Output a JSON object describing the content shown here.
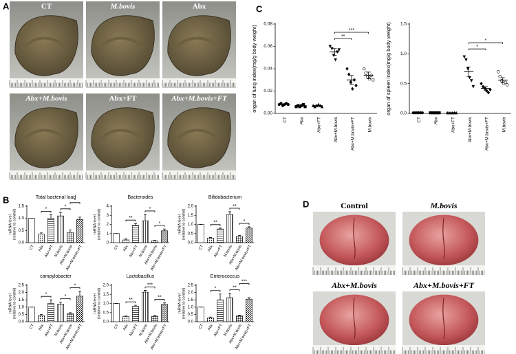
{
  "panels": {
    "a": "A",
    "b": "B",
    "c": "C",
    "d": "D"
  },
  "photos_a": [
    "CT",
    "M.bovis",
    "Abx",
    "Abx+M.bovis",
    "Abx+FT",
    "Abx+M.bovis+FT"
  ],
  "photos_d": [
    "Control",
    "M.bovis",
    "Abx+M.bovis",
    "Abx+M.bovis+FT"
  ],
  "chart_data": [
    {
      "type": "bar",
      "title": "Total bacterial load",
      "ylabel": [
        "mRNA level",
        "(relative to control)"
      ],
      "categories": [
        "CT",
        "Abx",
        "Abx+FT",
        "M.bovis",
        "Abx+M.bovis",
        "Abx+M.bovis+FT"
      ],
      "values": [
        1.0,
        0.35,
        1.0,
        1.1,
        0.42,
        0.95
      ],
      "errors": [
        0,
        0.05,
        0.15,
        0.15,
        0.1,
        0.1
      ],
      "ylim": [
        0,
        1.5
      ],
      "yticks": [
        {
          "value": 0,
          "label": "0.0"
        },
        {
          "value": 0.5,
          "label": "0.5"
        },
        {
          "value": 1,
          "label": "1.0"
        },
        {
          "value": 1.5,
          "label": "1.5"
        }
      ],
      "annotations": [
        {
          "text": "*",
          "between": [
            "Abx",
            "Abx+FT"
          ]
        },
        {
          "text": "*",
          "between": [
            "M.bovis",
            "Abx+M.bovis"
          ]
        },
        {
          "text": "*",
          "between": [
            "Abx+M.bovis",
            "Abx+M.bovis+FT"
          ]
        }
      ]
    },
    {
      "type": "bar",
      "title": "Bacteroides",
      "ylabel": [
        "mRNA level",
        "(relative to control)"
      ],
      "categories": [
        "CT",
        "Abx",
        "Abx+FT",
        "M.bovis",
        "Abx+M.bovis",
        "Abx+M.bovis+FT"
      ],
      "values": [
        1.0,
        0.3,
        1.9,
        2.4,
        0.2,
        1.3
      ],
      "errors": [
        0,
        0.1,
        0.2,
        0.7,
        0.05,
        0.2
      ],
      "ylim": [
        0,
        4
      ],
      "yticks": [
        0,
        1,
        2,
        3,
        4
      ],
      "annotations": [
        {
          "text": "**",
          "between": [
            "Abx",
            "Abx+FT"
          ]
        },
        {
          "text": "*",
          "between": [
            "M.bovis",
            "Abx+M.bovis"
          ]
        },
        {
          "text": "*",
          "between": [
            "Abx+M.bovis",
            "Abx+M.bovis+FT"
          ]
        }
      ]
    },
    {
      "type": "bar",
      "title": "Bifidobacterium",
      "ylabel": [
        "mRNA level",
        "(relative to control)"
      ],
      "categories": [
        "CT",
        "Abx",
        "Abx+FT",
        "M.bovis",
        "Abx+M.bovis",
        "Abx+M.bovis+FT"
      ],
      "values": [
        1.0,
        0.25,
        0.75,
        1.55,
        0.35,
        0.8
      ],
      "errors": [
        0,
        0.03,
        0.05,
        0.15,
        0.05,
        0.07
      ],
      "ylim": [
        0,
        2
      ],
      "yticks": [
        {
          "value": 0,
          "label": "0.0"
        },
        {
          "value": 0.5,
          "label": "0.5"
        },
        {
          "value": 1,
          "label": "1.0"
        },
        {
          "value": 1.5,
          "label": "1.5"
        },
        {
          "value": 2,
          "label": "2.0"
        }
      ],
      "annotations": [
        {
          "text": "**",
          "between": [
            "Abx",
            "Abx+FT"
          ]
        },
        {
          "text": "**",
          "between": [
            "M.bovis",
            "Abx+M.bovis"
          ]
        },
        {
          "text": "*",
          "between": [
            "Abx+M.bovis",
            "Abx+M.bovis+FT"
          ]
        }
      ]
    },
    {
      "type": "bar",
      "title": "campylobacter",
      "ylabel": [
        "mRNA level",
        "(relative to control)"
      ],
      "categories": [
        "CT",
        "Abx",
        "Abx+FT",
        "M.bovis",
        "Abx+M.bovis",
        "Abx+M.bovis+FT"
      ],
      "values": [
        1.0,
        0.42,
        1.25,
        1.2,
        0.55,
        1.75
      ],
      "errors": [
        0,
        0.08,
        0.25,
        0.15,
        0.07,
        0.35
      ],
      "ylim": [
        0,
        2.5
      ],
      "yticks": [
        {
          "value": 0,
          "label": "0.0"
        },
        {
          "value": 0.5,
          "label": "0.5"
        },
        {
          "value": 1,
          "label": "1.0"
        },
        {
          "value": 1.5,
          "label": "1.5"
        },
        {
          "value": 2,
          "label": "2.0"
        },
        {
          "value": 2.5,
          "label": "2.5"
        }
      ],
      "annotations": [
        {
          "text": "*",
          "between": [
            "Abx",
            "Abx+FT"
          ]
        },
        {
          "text": "*",
          "between": [
            "M.bovis",
            "Abx+M.bovis"
          ]
        },
        {
          "text": "*",
          "between": [
            "Abx+M.bovis",
            "Abx+M.bovis+FT"
          ]
        }
      ]
    },
    {
      "type": "bar",
      "title": "Lactobacillus",
      "ylabel": [
        "mRNA level",
        "(relative to control)"
      ],
      "categories": [
        "CT",
        "Abx",
        "Abx+FT",
        "M.bovis",
        "Abx+M.bovis",
        "Abx+M.bovis+FT"
      ],
      "values": [
        1.0,
        0.28,
        0.85,
        1.62,
        0.3,
        0.95
      ],
      "errors": [
        0,
        0.03,
        0.05,
        0.1,
        0.05,
        0.08
      ],
      "ylim": [
        0,
        2
      ],
      "yticks": [
        {
          "value": 0,
          "label": "0.0"
        },
        {
          "value": 0.5,
          "label": "0.5"
        },
        {
          "value": 1,
          "label": "1.0"
        },
        {
          "value": 1.5,
          "label": "1.5"
        },
        {
          "value": 2,
          "label": "2.0"
        }
      ],
      "annotations": [
        {
          "text": "**",
          "between": [
            "Abx",
            "Abx+FT"
          ]
        },
        {
          "text": "***",
          "between": [
            "M.bovis",
            "Abx+M.bovis"
          ]
        },
        {
          "text": "**",
          "between": [
            "Abx+M.bovis",
            "Abx+M.bovis+FT"
          ]
        }
      ]
    },
    {
      "type": "bar",
      "title": "Enterococcus",
      "ylabel": [
        "mRNA level",
        "(relative to control)"
      ],
      "categories": [
        "CT",
        "Abx",
        "Abx+FT",
        "M.bovis",
        "Abx+M.bovis",
        "Abx+M.bovis+FT"
      ],
      "values": [
        1.0,
        0.25,
        1.5,
        1.65,
        0.4,
        1.55
      ],
      "errors": [
        0,
        0.07,
        0.4,
        0.3,
        0.05,
        0.1
      ],
      "ylim": [
        0,
        2.5
      ],
      "yticks": [
        {
          "value": 0,
          "label": "0.0"
        },
        {
          "value": 0.5,
          "label": "0.5"
        },
        {
          "value": 1,
          "label": "1.0"
        },
        {
          "value": 1.5,
          "label": "1.5"
        },
        {
          "value": 2,
          "label": "2.0"
        },
        {
          "value": 2.5,
          "label": "2.5"
        }
      ],
      "annotations": [
        {
          "text": "*",
          "between": [
            "Abx",
            "Abx+FT"
          ]
        },
        {
          "text": "**",
          "between": [
            "M.bovis",
            "Abx+M.bovis"
          ]
        },
        {
          "text": "***",
          "between": [
            "Abx+M.bovis",
            "Abx+M.bovis+FT"
          ]
        }
      ]
    },
    {
      "type": "scatter",
      "ylabel": "organ of lung index(mg/g body weight)",
      "categories": [
        "CT",
        "Abx",
        "Abx+FT",
        "Abx+M.bovis",
        "Abx+M.bovis+FT",
        "M.bovis"
      ],
      "points": [
        [
          0.008,
          0.009,
          0.007,
          0.008,
          0.009,
          0.008
        ],
        [
          0.006,
          0.007,
          0.006,
          0.007,
          0.008,
          0.006
        ],
        [
          0.007,
          0.006,
          0.007,
          0.008,
          0.007,
          0.006
        ],
        [
          0.06,
          0.058,
          0.052,
          0.048,
          0.055,
          0.057
        ],
        [
          0.04,
          0.035,
          0.028,
          0.022,
          0.03,
          0.025
        ],
        [
          0.04,
          0.036,
          0.033,
          0.031,
          0.034,
          0.03
        ]
      ],
      "means": [
        0.008,
        0.007,
        0.007,
        0.055,
        0.03,
        0.034
      ],
      "errors": [
        0.0005,
        0.0005,
        0.0005,
        0.003,
        0.004,
        0.003
      ],
      "ylim": [
        0,
        0.08
      ],
      "yticks": [
        {
          "value": 0,
          "label": "0.00"
        },
        {
          "value": 0.02,
          "label": "0.02"
        },
        {
          "value": 0.04,
          "label": "0.04"
        },
        {
          "value": 0.06,
          "label": "0.06"
        },
        {
          "value": 0.08,
          "label": "0.08"
        }
      ],
      "annotations": [
        {
          "text": "**",
          "between": [
            "Abx+M.bovis",
            "Abx+M.bovis+FT"
          ]
        },
        {
          "text": "***",
          "between": [
            "Abx+M.bovis",
            "M.bovis"
          ]
        }
      ]
    },
    {
      "type": "scatter",
      "ylabel": "organ of spleen index(mg/g body weight)",
      "categories": [
        "CT",
        "Abx",
        "Abx+FT",
        "Abx+M.bovis",
        "Abx+M.bovis+FT",
        "M.bovis"
      ],
      "points": [
        [
          0.01,
          0.01,
          0.01,
          0.01,
          0.01,
          0.01
        ],
        [
          0.01,
          0.01,
          0.01,
          0.01,
          0.01,
          0.01
        ],
        [
          0.01,
          0.01,
          0.01,
          0.01,
          0.01,
          0.01
        ],
        [
          0.95,
          0.9,
          0.75,
          0.6,
          0.55,
          0.45
        ],
        [
          0.5,
          0.45,
          0.42,
          0.38,
          0.35,
          0.4
        ],
        [
          0.7,
          0.62,
          0.55,
          0.5,
          0.52,
          0.48
        ]
      ],
      "means": [
        0.01,
        0.01,
        0.01,
        0.7,
        0.42,
        0.56
      ],
      "errors": [
        0.002,
        0.002,
        0.002,
        0.08,
        0.03,
        0.04
      ],
      "ylim": [
        0,
        1.5
      ],
      "yticks": [
        {
          "value": 0,
          "label": "0.0"
        },
        {
          "value": 0.5,
          "label": "0.5"
        },
        {
          "value": 1,
          "label": "1.0"
        },
        {
          "value": 1.5,
          "label": "1.5"
        }
      ],
      "annotations": [
        {
          "text": "*",
          "between": [
            "Abx+M.bovis",
            "Abx+M.bovis+FT"
          ]
        },
        {
          "text": "*",
          "between": [
            "Abx+M.bovis",
            "M.bovis"
          ]
        }
      ]
    }
  ]
}
